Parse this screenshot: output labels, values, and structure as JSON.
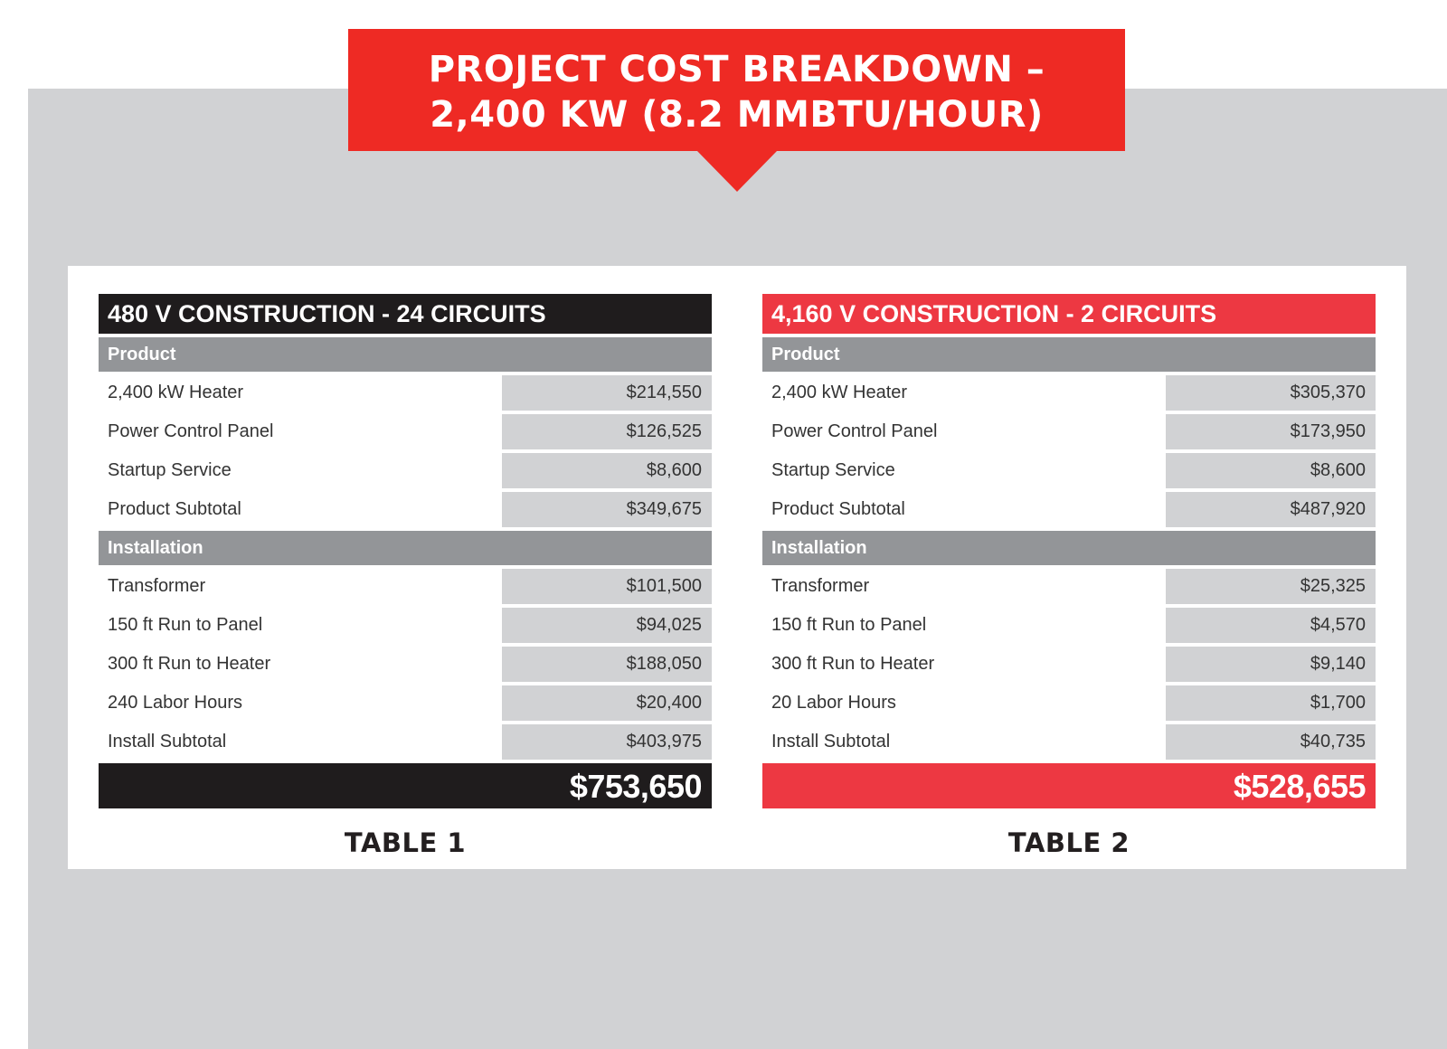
{
  "banner": {
    "line1": "PROJECT COST BREAKDOWN –",
    "line2": "2,400 KW (8.2 MMBTU/HOUR)"
  },
  "colors": {
    "banner_red": "#ee2a24",
    "table2_red": "#ed3842",
    "table1_black": "#1f1c1d",
    "section_gray": "#939598",
    "value_gray": "#d1d2d4"
  },
  "tables": [
    {
      "title": "480 V CONSTRUCTION - 24 CIRCUITS",
      "product_label": "Product",
      "product_rows": [
        {
          "label": "2,400 kW Heater",
          "value": "$214,550"
        },
        {
          "label": "Power Control Panel",
          "value": "$126,525"
        },
        {
          "label": "Startup Service",
          "value": "$8,600"
        },
        {
          "label": "Product Subtotal",
          "value": "$349,675"
        }
      ],
      "installation_label": "Installation",
      "installation_rows": [
        {
          "label": "Transformer",
          "value": "$101,500"
        },
        {
          "label": "150 ft Run to Panel",
          "value": "$94,025"
        },
        {
          "label": "300 ft Run to Heater",
          "value": "$188,050"
        },
        {
          "label": "240 Labor Hours",
          "value": "$20,400"
        },
        {
          "label": "Install Subtotal",
          "value": "$403,975"
        }
      ],
      "total": "$753,650",
      "caption": "TABLE 1"
    },
    {
      "title": "4,160 V CONSTRUCTION - 2 CIRCUITS",
      "product_label": "Product",
      "product_rows": [
        {
          "label": "2,400 kW Heater",
          "value": "$305,370"
        },
        {
          "label": "Power Control Panel",
          "value": "$173,950"
        },
        {
          "label": "Startup Service",
          "value": "$8,600"
        },
        {
          "label": "Product Subtotal",
          "value": "$487,920"
        }
      ],
      "installation_label": "Installation",
      "installation_rows": [
        {
          "label": "Transformer",
          "value": "$25,325"
        },
        {
          "label": "150 ft Run to Panel",
          "value": "$4,570"
        },
        {
          "label": "300 ft Run to Heater",
          "value": "$9,140"
        },
        {
          "label": "20 Labor Hours",
          "value": "$1,700"
        },
        {
          "label": "Install Subtotal",
          "value": "$40,735"
        }
      ],
      "total": "$528,655",
      "caption": "TABLE 2"
    }
  ]
}
